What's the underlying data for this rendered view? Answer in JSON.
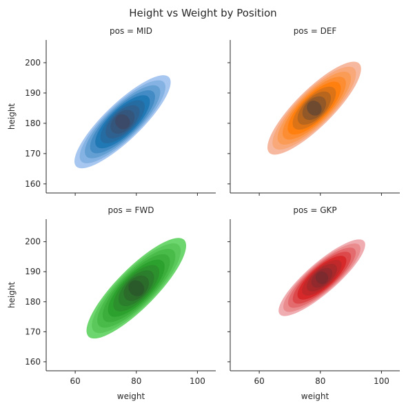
{
  "chart_data": {
    "type": "kde-contour-facets",
    "title": "Height vs Weight by Position",
    "xlabel": "weight",
    "ylabel": "height",
    "xlim": [
      50.5,
      106
    ],
    "ylim": [
      157,
      207.5
    ],
    "xticks": [
      60,
      80,
      100
    ],
    "yticks": [
      160,
      170,
      180,
      190,
      200
    ],
    "panels": [
      {
        "id": "mid",
        "title": "pos = MID",
        "color": "#1f77b4",
        "light": "#a3c4ef",
        "dark": "#3c4a68",
        "center": {
          "weight": 75.5,
          "height": 180.5
        },
        "weight_range": [
          57,
          90
        ],
        "height_range": [
          163.5,
          195.5
        ]
      },
      {
        "id": "def",
        "title": "pos = DEF",
        "color": "#ff7f0e",
        "light": "#f5b49a",
        "dark": "#6b4a30",
        "center": {
          "weight": 78,
          "height": 185
        },
        "weight_range": [
          66,
          98
        ],
        "height_range": [
          167,
          199
        ]
      },
      {
        "id": "fwd",
        "title": "pos = FWD",
        "color": "#2ca02c",
        "light": "#66d466",
        "dark": "#2a5a2a",
        "center": {
          "weight": 80,
          "height": 184.5
        },
        "weight_range": [
          59,
          93
        ],
        "height_range": [
          163.5,
          198.5
        ]
      },
      {
        "id": "gkp",
        "title": "pos = GKP",
        "color": "#d62728",
        "light": "#efa9ad",
        "dark": "#7a2a2e",
        "center": {
          "weight": 80.5,
          "height": 188
        },
        "weight_range": [
          68,
          98
        ],
        "height_range": [
          175.5,
          202
        ]
      }
    ]
  }
}
